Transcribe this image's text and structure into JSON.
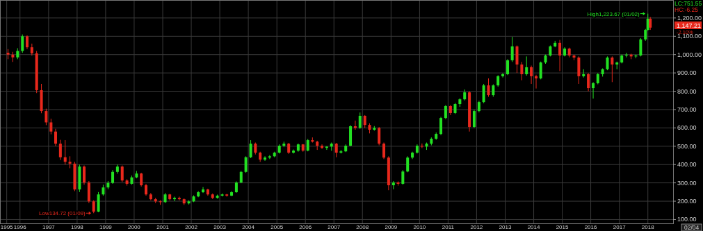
{
  "chart_data": {
    "type": "candlestick",
    "x": [
      "1995-08",
      "1995-10",
      "1995-12",
      "1996-02",
      "1996-04",
      "1996-06",
      "1996-08",
      "1996-10",
      "1996-12",
      "1997-02",
      "1997-04",
      "1997-06",
      "1997-08",
      "1997-10",
      "1997-12",
      "1998-02",
      "1998-04",
      "1998-06",
      "1998-08",
      "1998-10",
      "1998-12",
      "1999-02",
      "1999-04",
      "1999-06",
      "1999-08",
      "1999-10",
      "1999-12",
      "2000-02",
      "2000-04",
      "2000-06",
      "2000-08",
      "2000-10",
      "2000-12",
      "2001-02",
      "2001-04",
      "2001-06",
      "2001-08",
      "2001-10",
      "2001-12",
      "2002-02",
      "2002-04",
      "2002-06",
      "2002-08",
      "2002-10",
      "2002-12",
      "2003-02",
      "2003-04",
      "2003-06",
      "2003-08",
      "2003-10",
      "2003-12",
      "2004-02",
      "2004-04",
      "2004-06",
      "2004-08",
      "2004-10",
      "2004-12",
      "2005-02",
      "2005-04",
      "2005-06",
      "2005-08",
      "2005-10",
      "2005-12",
      "2006-02",
      "2006-04",
      "2006-06",
      "2006-08",
      "2006-10",
      "2006-12",
      "2007-02",
      "2007-04",
      "2007-06",
      "2007-08",
      "2007-10",
      "2007-12",
      "2008-02",
      "2008-04",
      "2008-06",
      "2008-08",
      "2008-10",
      "2008-12",
      "2009-02",
      "2009-04",
      "2009-06",
      "2009-08",
      "2009-10",
      "2009-12",
      "2010-02",
      "2010-04",
      "2010-06",
      "2010-08",
      "2010-10",
      "2010-12",
      "2011-02",
      "2011-04",
      "2011-06",
      "2011-08",
      "2011-10",
      "2011-12",
      "2012-02",
      "2012-04",
      "2012-06",
      "2012-08",
      "2012-10",
      "2012-12",
      "2013-02",
      "2013-04",
      "2013-06",
      "2013-08",
      "2013-10",
      "2013-12",
      "2014-02",
      "2014-04",
      "2014-06",
      "2014-08",
      "2014-10",
      "2014-12",
      "2015-02",
      "2015-04",
      "2015-06",
      "2015-08",
      "2015-10",
      "2015-12",
      "2016-02",
      "2016-04",
      "2016-06",
      "2016-08",
      "2016-10",
      "2016-12",
      "2017-02",
      "2017-04",
      "2017-06",
      "2017-08",
      "2017-10",
      "2017-12",
      "2018-01",
      "2018-02"
    ],
    "ohlc": [
      [
        1010,
        1030,
        975,
        1000
      ],
      [
        1000,
        1015,
        960,
        985
      ],
      [
        985,
        1035,
        975,
        1020
      ],
      [
        1020,
        1110,
        1010,
        1100
      ],
      [
        1100,
        1105,
        1030,
        1040
      ],
      [
        1040,
        1060,
        995,
        1007
      ],
      [
        1007,
        1020,
        790,
        806
      ],
      [
        806,
        840,
        680,
        692
      ],
      [
        692,
        705,
        615,
        630
      ],
      [
        630,
        650,
        565,
        580
      ],
      [
        580,
        595,
        500,
        514
      ],
      [
        514,
        535,
        425,
        440
      ],
      [
        440,
        533,
        400,
        415
      ],
      [
        415,
        445,
        380,
        405
      ],
      [
        405,
        415,
        255,
        264
      ],
      [
        264,
        400,
        250,
        389
      ],
      [
        389,
        395,
        290,
        302
      ],
      [
        302,
        310,
        190,
        199
      ],
      [
        199,
        205,
        134.72,
        143
      ],
      [
        143,
        250,
        140,
        237
      ],
      [
        237,
        290,
        230,
        275
      ],
      [
        275,
        310,
        265,
        300
      ],
      [
        300,
        370,
        295,
        360
      ],
      [
        360,
        400,
        350,
        389
      ],
      [
        389,
        395,
        305,
        313
      ],
      [
        313,
        320,
        285,
        295
      ],
      [
        295,
        340,
        290,
        330
      ],
      [
        330,
        365,
        325,
        351
      ],
      [
        351,
        355,
        280,
        287
      ],
      [
        287,
        295,
        230,
        237
      ],
      [
        237,
        245,
        205,
        211
      ],
      [
        211,
        218,
        190,
        199
      ],
      [
        199,
        205,
        180,
        195
      ],
      [
        195,
        245,
        190,
        237
      ],
      [
        237,
        240,
        205,
        211
      ],
      [
        211,
        225,
        200,
        218
      ],
      [
        218,
        225,
        205,
        211
      ],
      [
        211,
        215,
        180,
        188
      ],
      [
        188,
        205,
        182,
        199
      ],
      [
        199,
        232,
        195,
        226
      ],
      [
        226,
        255,
        222,
        249
      ],
      [
        249,
        277,
        245,
        264
      ],
      [
        264,
        268,
        230,
        237
      ],
      [
        237,
        242,
        212,
        218
      ],
      [
        218,
        236,
        214,
        230
      ],
      [
        230,
        242,
        226,
        237
      ],
      [
        237,
        240,
        225,
        230
      ],
      [
        230,
        255,
        228,
        249
      ],
      [
        249,
        308,
        246,
        302
      ],
      [
        302,
        365,
        298,
        360
      ],
      [
        360,
        445,
        355,
        440
      ],
      [
        440,
        533,
        435,
        514
      ],
      [
        514,
        520,
        455,
        465
      ],
      [
        465,
        470,
        415,
        427
      ],
      [
        427,
        445,
        420,
        438
      ],
      [
        438,
        452,
        430,
        445
      ],
      [
        445,
        470,
        440,
        465
      ],
      [
        465,
        510,
        460,
        503
      ],
      [
        503,
        525,
        495,
        514
      ],
      [
        514,
        518,
        458,
        465
      ],
      [
        465,
        482,
        460,
        476
      ],
      [
        476,
        515,
        470,
        510
      ],
      [
        510,
        512,
        470,
        476
      ],
      [
        476,
        540,
        472,
        533
      ],
      [
        533,
        548,
        520,
        525
      ],
      [
        525,
        530,
        480,
        503
      ],
      [
        503,
        510,
        485,
        491
      ],
      [
        491,
        500,
        480,
        498
      ],
      [
        498,
        520,
        475,
        514
      ],
      [
        514,
        518,
        440,
        465
      ],
      [
        465,
        480,
        460,
        472
      ],
      [
        472,
        510,
        468,
        503
      ],
      [
        503,
        615,
        500,
        609
      ],
      [
        609,
        640,
        590,
        600
      ],
      [
        600,
        684,
        595,
        666
      ],
      [
        666,
        670,
        600,
        616
      ],
      [
        616,
        625,
        570,
        590
      ],
      [
        590,
        610,
        585,
        600
      ],
      [
        600,
        605,
        505,
        514
      ],
      [
        514,
        520,
        430,
        438
      ],
      [
        438,
        445,
        260,
        287
      ],
      [
        287,
        310,
        265,
        302
      ],
      [
        302,
        308,
        285,
        295
      ],
      [
        295,
        370,
        290,
        362
      ],
      [
        362,
        445,
        358,
        438
      ],
      [
        438,
        470,
        430,
        465
      ],
      [
        465,
        510,
        460,
        503
      ],
      [
        503,
        515,
        490,
        498
      ],
      [
        498,
        520,
        480,
        514
      ],
      [
        514,
        548,
        505,
        541
      ],
      [
        541,
        575,
        535,
        567
      ],
      [
        567,
        660,
        560,
        654
      ],
      [
        654,
        725,
        648,
        719
      ],
      [
        719,
        725,
        670,
        681
      ],
      [
        681,
        736,
        676,
        730
      ],
      [
        730,
        762,
        715,
        756
      ],
      [
        756,
        810,
        750,
        794
      ],
      [
        794,
        800,
        580,
        605
      ],
      [
        605,
        700,
        600,
        692
      ],
      [
        692,
        748,
        685,
        741
      ],
      [
        741,
        840,
        735,
        832
      ],
      [
        832,
        870,
        770,
        779
      ],
      [
        779,
        838,
        770,
        832
      ],
      [
        832,
        888,
        825,
        882
      ],
      [
        882,
        900,
        875,
        893
      ],
      [
        893,
        975,
        888,
        969
      ],
      [
        969,
        1097,
        960,
        1045
      ],
      [
        1045,
        1050,
        900,
        946
      ],
      [
        946,
        960,
        860,
        893
      ],
      [
        893,
        990,
        885,
        931
      ],
      [
        931,
        940,
        840,
        882
      ],
      [
        882,
        890,
        815,
        870
      ],
      [
        870,
        962,
        865,
        957
      ],
      [
        957,
        1000,
        950,
        995
      ],
      [
        995,
        1050,
        990,
        1045
      ],
      [
        1045,
        1075,
        1040,
        1064
      ],
      [
        1064,
        1080,
        910,
        995
      ],
      [
        995,
        1040,
        990,
        1033
      ],
      [
        1033,
        1038,
        985,
        995
      ],
      [
        995,
        1000,
        970,
        984
      ],
      [
        984,
        990,
        840,
        882
      ],
      [
        882,
        920,
        875,
        893
      ],
      [
        893,
        900,
        800,
        817
      ],
      [
        817,
        850,
        760,
        844
      ],
      [
        844,
        900,
        838,
        893
      ],
      [
        893,
        925,
        880,
        920
      ],
      [
        920,
        990,
        915,
        984
      ],
      [
        984,
        990,
        850,
        946
      ],
      [
        946,
        962,
        920,
        957
      ],
      [
        957,
        1000,
        952,
        995
      ],
      [
        995,
        1010,
        985,
        1000
      ],
      [
        1000,
        1005,
        975,
        990
      ],
      [
        990,
        1000,
        980,
        995
      ],
      [
        995,
        1090,
        990,
        1083
      ],
      [
        1083,
        1140,
        1075,
        1135
      ],
      [
        1135,
        1223.67,
        1130,
        1196
      ],
      [
        1196,
        1205,
        1135,
        1147.21
      ]
    ],
    "xlim": [
      "1995-04-20",
      "2018-11-20"
    ],
    "xticks": [
      {
        "value": "1995-07-15",
        "label": "1995"
      },
      {
        "value": "1996-01-01",
        "label": "1996"
      },
      {
        "value": "1997-01-01",
        "label": "1997"
      },
      {
        "value": "1998-01-01",
        "label": "1998"
      },
      {
        "value": "1999-01-01",
        "label": "1999"
      },
      {
        "value": "2000-01-01",
        "label": "2000"
      },
      {
        "value": "2001-01-01",
        "label": "2001"
      },
      {
        "value": "2002-01-01",
        "label": "2002"
      },
      {
        "value": "2003-01-01",
        "label": "2003"
      },
      {
        "value": "2004-01-01",
        "label": "2004"
      },
      {
        "value": "2005-01-01",
        "label": "2005"
      },
      {
        "value": "2006-01-01",
        "label": "2006"
      },
      {
        "value": "2007-01-01",
        "label": "2007"
      },
      {
        "value": "2008-01-01",
        "label": "2008"
      },
      {
        "value": "2009-01-01",
        "label": "2009"
      },
      {
        "value": "2010-01-01",
        "label": "2010"
      },
      {
        "value": "2011-01-01",
        "label": "2011"
      },
      {
        "value": "2012-01-01",
        "label": "2012"
      },
      {
        "value": "2013-01-01",
        "label": "2013"
      },
      {
        "value": "2014-01-01",
        "label": "2014"
      },
      {
        "value": "2015-01-01",
        "label": "2015"
      },
      {
        "value": "2016-01-01",
        "label": "2016"
      },
      {
        "value": "2017-01-01",
        "label": "2017"
      },
      {
        "value": "2018-01-01",
        "label": "2018"
      }
    ],
    "ylim": [
      79,
      1298
    ],
    "yticks": [
      {
        "value": 100,
        "label": "100.00"
      },
      {
        "value": 200,
        "label": "200.00"
      },
      {
        "value": 300,
        "label": "300.00"
      },
      {
        "value": 400,
        "label": "400.00"
      },
      {
        "value": 500,
        "label": "500.00"
      },
      {
        "value": 600,
        "label": "600.00"
      },
      {
        "value": 700,
        "label": "700.00"
      },
      {
        "value": 800,
        "label": "800.00"
      },
      {
        "value": 900,
        "label": "900.00"
      },
      {
        "value": 1000,
        "label": "1,000.00"
      },
      {
        "value": 1100,
        "label": "1,100.00"
      },
      {
        "value": 1200,
        "label": "1,200.00"
      }
    ],
    "grid": true,
    "annotations": [
      {
        "text": "High1,223.67 (01/02)",
        "x": "2018-01",
        "y": 1223.67
      },
      {
        "text": "Low134.72 (01/09)",
        "x": "1998-08",
        "y": 134.72
      },
      "1,147.21",
      "LC:751.55",
      "HC:-6.25",
      "-2.10%",
      "02/04"
    ]
  }
}
